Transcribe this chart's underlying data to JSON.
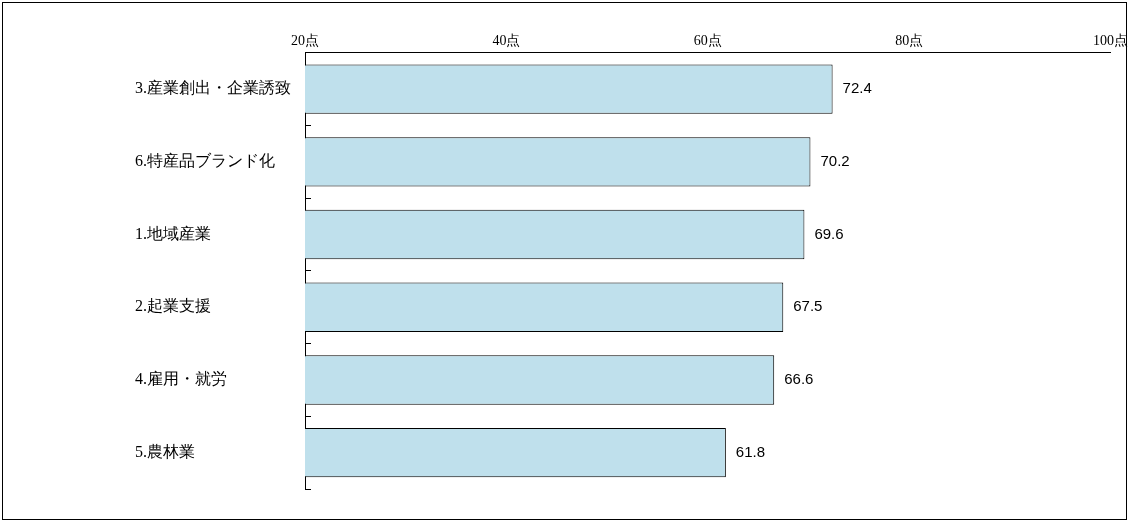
{
  "chart_data": {
    "type": "bar",
    "orientation": "horizontal",
    "categories": [
      "3.産業創出・企業誘致",
      "6.特産品ブランド化",
      "1.地域産業",
      "2.起業支援",
      "4.雇用・就労",
      "5.農林業"
    ],
    "values": [
      72.4,
      70.2,
      69.6,
      67.5,
      66.6,
      61.8
    ],
    "color": "#bfe0ec",
    "xlim": [
      20,
      100
    ],
    "xticks": [
      {
        "value": 20,
        "label": "20点"
      },
      {
        "value": 40,
        "label": "40点"
      },
      {
        "value": 60,
        "label": "60点"
      },
      {
        "value": 80,
        "label": "80点"
      },
      {
        "value": 100,
        "label": "100点"
      }
    ],
    "data_labels": true,
    "grid": false,
    "legend": false
  }
}
